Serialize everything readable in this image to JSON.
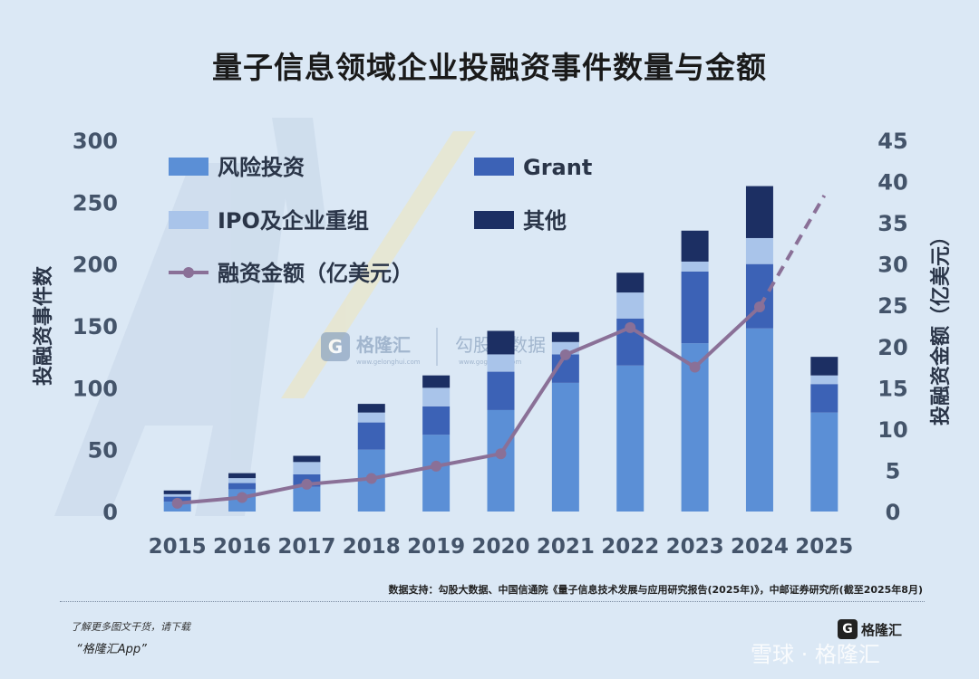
{
  "header": {
    "title": "量子信息领域企业投融资事件数量与金额"
  },
  "colors": {
    "vc": "#5b8fd6",
    "grant": "#3c62b6",
    "ipo": "#a9c4ea",
    "other": "#1c2f63",
    "line": "#8a7097"
  },
  "chart_data": {
    "type": "bar",
    "stacked": true,
    "categories": [
      "2015",
      "2016",
      "2017",
      "2018",
      "2019",
      "2020",
      "2021",
      "2022",
      "2023",
      "2024",
      "2025"
    ],
    "series": [
      {
        "name": "风险投资",
        "key": "vc",
        "values": [
          8,
          18,
          20,
          50,
          62,
          82,
          104,
          118,
          136,
          148,
          80
        ]
      },
      {
        "name": "Grant",
        "key": "grant",
        "values": [
          4,
          5,
          10,
          22,
          23,
          31,
          23,
          38,
          58,
          52,
          23
        ]
      },
      {
        "name": "IPO及企业重组",
        "key": "ipo",
        "values": [
          2,
          4,
          10,
          8,
          15,
          14,
          10,
          21,
          8,
          21,
          7
        ]
      },
      {
        "name": "其他",
        "key": "other",
        "values": [
          3,
          4,
          5,
          7,
          10,
          19,
          8,
          16,
          25,
          42,
          15
        ]
      }
    ],
    "line_series": {
      "name": "融资金额（亿美元）",
      "values": [
        1,
        1.7,
        3.3,
        4,
        5.5,
        7,
        19,
        22.3,
        17.5,
        24.8,
        38.3
      ],
      "dashed_last_segment": true
    },
    "ylabel": "投融资事件数",
    "y2label": "投融资金额（亿美元）",
    "ylim": [
      0,
      300
    ],
    "y2lim": [
      0,
      45
    ],
    "yticks": [
      0,
      50,
      100,
      150,
      200,
      250,
      300
    ],
    "y2ticks": [
      0,
      5,
      10,
      15,
      20,
      25,
      30,
      35,
      40,
      45
    ],
    "legend_position": "top-left"
  },
  "watermark": {
    "logo_text": "格隆汇",
    "logo_sub": "www.gelonghui.com",
    "data_text": "勾股大数据",
    "data_sub": "www.gogudata.com"
  },
  "footer": {
    "source": "数据支持：勾股大数据、中国信通院《量子信息技术发展与应用研究报告(2025年)》，中邮证券研究所(截至2025年8月)",
    "promo_line1": "了解更多图文干货，请下载",
    "promo_line2": "“格隆汇App”",
    "corner_logo_mark": "G",
    "corner_logo": "格隆汇",
    "platform_watermark": "雪球 · 格隆汇"
  }
}
